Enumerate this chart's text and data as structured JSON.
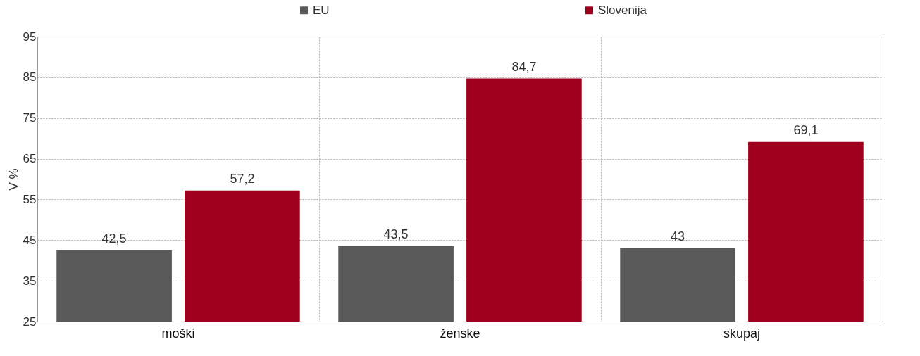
{
  "chart_data": {
    "type": "bar",
    "ylabel": "V %",
    "categories": [
      "moški",
      "ženske",
      "skupaj"
    ],
    "series": [
      {
        "name": "EU",
        "color": "#595959",
        "values": [
          42.5,
          43.5,
          43
        ],
        "value_labels": [
          "42,5",
          "43,5",
          "43"
        ]
      },
      {
        "name": "Slovenija",
        "color": "#a0001e",
        "values": [
          57.2,
          84.7,
          69.1
        ],
        "value_labels": [
          "57,2",
          "84,7",
          "69,1"
        ]
      }
    ],
    "ylim": [
      25,
      95
    ],
    "yticks": [
      25,
      35,
      45,
      55,
      65,
      75,
      85,
      95
    ],
    "grid": true,
    "legend": "top"
  }
}
